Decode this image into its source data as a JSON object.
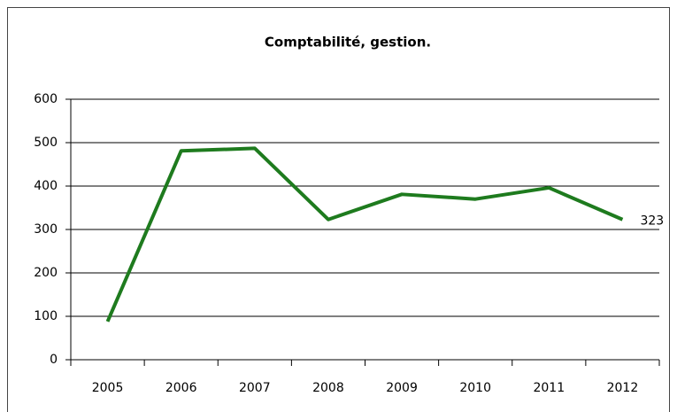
{
  "chart_data": {
    "type": "line",
    "title": "Comptabilité, gestion.",
    "categories": [
      "2005",
      "2006",
      "2007",
      "2008",
      "2009",
      "2010",
      "2011",
      "2012"
    ],
    "series": [
      {
        "color": "#1e7b1e",
        "values": [
          88,
          481,
          487,
          323,
          381,
          370,
          396,
          323
        ]
      }
    ],
    "data_label_index": 7,
    "ylim": [
      0,
      600
    ],
    "yticks": [
      0,
      100,
      200,
      300,
      400,
      500,
      600
    ],
    "grid": true
  }
}
